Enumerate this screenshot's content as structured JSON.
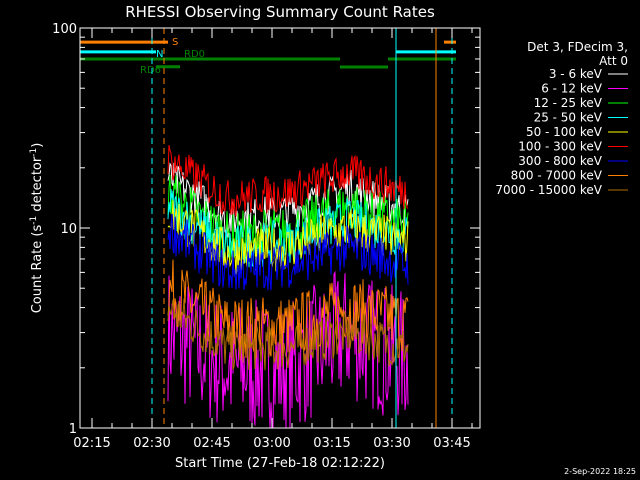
{
  "chart_data": {
    "type": "line",
    "title": "RHESSI Observing Summary Count Rates",
    "xlabel": "Start Time (27-Feb-18 02:12:22)",
    "ylabel": "Count Rate (s",
    "ylabel_sup": "-1",
    "ylabel_tail": " detector",
    "ylabel_close": ")",
    "yscale": "log",
    "xlim": [
      "02:12",
      "03:52"
    ],
    "ylim": [
      1,
      100
    ],
    "x_ticks": [
      "02:15",
      "02:30",
      "02:45",
      "03:00",
      "03:15",
      "03:30",
      "03:45"
    ],
    "y_ticks": [
      "1",
      "10",
      "100"
    ],
    "legend_header": [
      "Det 3, FDecim 3,",
      "Att 0"
    ],
    "legend_position": "right",
    "series": [
      {
        "name": "3 - 6 keV",
        "color": "#ffffff",
        "level": [
          18,
          11,
          12,
          16,
          12
        ],
        "spread": 1.25
      },
      {
        "name": "6 - 12 keV",
        "color": "#ff00ff",
        "level": [
          3,
          2,
          2,
          3,
          2.2
        ],
        "spread": 2.2
      },
      {
        "name": "12 - 25 keV",
        "color": "#00ff00",
        "level": [
          15,
          9,
          9.5,
          13,
          10
        ],
        "spread": 1.35
      },
      {
        "name": "25 - 50 keV",
        "color": "#00ffff",
        "level": [
          13,
          8,
          8.5,
          11,
          9
        ],
        "spread": 1.3
      },
      {
        "name": "50 - 100 keV",
        "color": "#ffff00",
        "level": [
          12,
          7.5,
          8,
          10,
          8.5
        ],
        "spread": 1.3
      },
      {
        "name": "100 - 300 keV",
        "color": "#ff0000",
        "level": [
          22,
          14,
          15,
          19,
          15
        ],
        "spread": 1.25
      },
      {
        "name": "300 - 800 keV",
        "color": "#0000ff",
        "level": [
          10,
          6,
          6.5,
          8,
          6.5
        ],
        "spread": 1.3
      },
      {
        "name": "800 - 7000 keV",
        "color": "#ff8000",
        "level": [
          5,
          3.2,
          3.2,
          4,
          3.4
        ],
        "spread": 1.45
      },
      {
        "name": "7000 - 15000 keV",
        "color": "#b07000",
        "level": [
          4,
          2.5,
          2.5,
          3,
          2.5
        ],
        "spread": 1.3
      }
    ],
    "data_span": [
      "02:34",
      "03:34"
    ],
    "flags": [
      {
        "name": "S",
        "color": "#ff8000",
        "level": 85,
        "segments": [
          [
            "02:12",
            "02:34"
          ],
          [
            "03:43",
            "03:46"
          ]
        ]
      },
      {
        "name": "N",
        "color": "#00ffff",
        "level": 76,
        "segments": [
          [
            "02:12",
            "02:31"
          ],
          [
            "03:31",
            "03:46"
          ]
        ]
      },
      {
        "name": "RD6",
        "color": "#008000",
        "level": 64,
        "segments": [
          [
            "02:31",
            "02:37"
          ]
        ]
      },
      {
        "name": "RD0",
        "color": "#008000",
        "level": 70,
        "segments": [
          [
            "02:12",
            "03:17"
          ],
          [
            "03:17",
            "03:29"
          ],
          [
            "03:29",
            "03:46"
          ]
        ]
      }
    ],
    "vertical_lines": [
      {
        "x": "02:12",
        "color": "#00ffff",
        "dashed": false
      },
      {
        "x": "02:30",
        "color": "#00ffff",
        "dashed": true
      },
      {
        "x": "02:33",
        "color": "#ff8000",
        "dashed": true
      },
      {
        "x": "03:31",
        "color": "#00ffff",
        "dashed": false
      },
      {
        "x": "03:41",
        "color": "#ff8000",
        "dashed": false
      },
      {
        "x": "03:45",
        "color": "#00ffff",
        "dashed": true
      }
    ],
    "footer": "2-Sep-2022 18:25"
  }
}
